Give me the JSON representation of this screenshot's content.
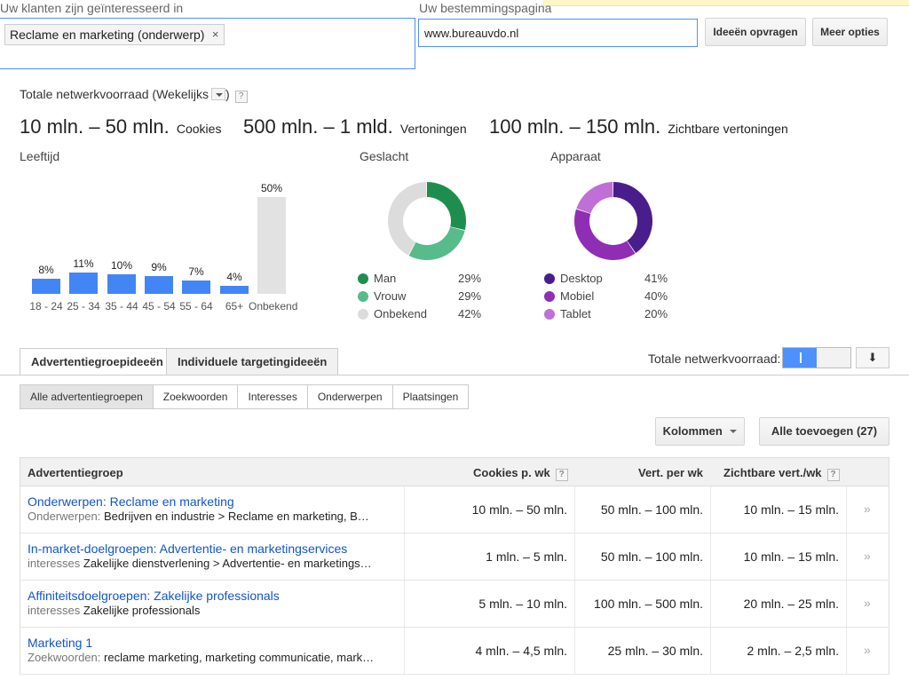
{
  "targeting": {
    "audience_label": "Uw klanten zijn geïnteresseerd in",
    "audience_chip": "Reclame en marketing (onderwerp)",
    "chip_remove": "×",
    "landing_label": "Uw bestemmingspagina",
    "landing_value": "www.bureauvdo.nl",
    "get_ideas_label": "Ideeën opvragen",
    "more_options_label": "Meer opties"
  },
  "summary": {
    "title": "Totale netwerkvoorraad (Wekelijks",
    "title_close": ")",
    "help": "?",
    "stats": [
      {
        "value": "10 mln. – 50 mln.",
        "unit": "Cookies"
      },
      {
        "value": "500 mln. – 1 mld.",
        "unit": "Vertoningen"
      },
      {
        "value": "100 mln. – 150 mln.",
        "unit": "Zichtbare vertoningen"
      }
    ]
  },
  "chart_data": [
    {
      "type": "bar",
      "title": "Leeftijd",
      "categories": [
        "18 - 24",
        "25 - 34",
        "35 - 44",
        "45 - 54",
        "55 - 64",
        "65+",
        "Onbekend"
      ],
      "values": [
        8,
        11,
        10,
        9,
        7,
        4,
        50
      ],
      "labels": [
        "8%",
        "11%",
        "10%",
        "9%",
        "7%",
        "4%",
        "50%"
      ],
      "colors": [
        "#4285f4",
        "#4285f4",
        "#4285f4",
        "#4285f4",
        "#4285f4",
        "#4285f4",
        "#e2e2e2"
      ]
    },
    {
      "type": "pie",
      "title": "Geslacht",
      "categories": [
        "Man",
        "Vrouw",
        "Onbekend"
      ],
      "values": [
        29,
        29,
        42
      ],
      "labels": [
        "29%",
        "29%",
        "42%"
      ],
      "colors": [
        "#1e8e4e",
        "#57bb8a",
        "#dcdcdc"
      ]
    },
    {
      "type": "pie",
      "title": "Apparaat",
      "categories": [
        "Desktop",
        "Mobiel",
        "Tablet"
      ],
      "values": [
        41,
        40,
        20
      ],
      "labels": [
        "41%",
        "40%",
        "20%"
      ],
      "colors": [
        "#4a1d8c",
        "#8f2db5",
        "#c06fd6"
      ]
    }
  ],
  "tabs": {
    "ad_groups": "Advertentiegroepideeën",
    "individual": "Individuele targetingideeën",
    "toggle_label": "Totale netwerkvoorraad:",
    "download_icon": "⬇"
  },
  "subtabs": [
    "Alle advertentiegroepen",
    "Zoekwoorden",
    "Interesses",
    "Onderwerpen",
    "Plaatsingen"
  ],
  "actions": {
    "columns_label": "Kolommen",
    "add_all_label": "Alle toevoegen (27)"
  },
  "table": {
    "headers": [
      "Advertentiegroep",
      "Cookies p. wk",
      "Vert. per wk",
      "Zichtbare vert./wk"
    ],
    "chevron": "»",
    "rows": [
      {
        "title": "Onderwerpen: Reclame en marketing",
        "type": "Onderwerpen:",
        "detail": "Bedrijven en industrie > Reclame en marketing, B…",
        "cookies": "10 mln. – 50 mln.",
        "impressions": "50 mln. – 100 mln.",
        "viewable": "10 mln. – 15 mln."
      },
      {
        "title": "In-market-doelgroepen: Advertentie- en marketingservices",
        "type": "interesses",
        "detail": "Zakelijke dienstverlening > Advertentie- en marketings…",
        "cookies": "1 mln. – 5 mln.",
        "impressions": "50 mln. – 100 mln.",
        "viewable": "10 mln. – 15 mln."
      },
      {
        "title": "Affiniteitsdoelgroepen: Zakelijke professionals",
        "type": "interesses",
        "detail": "Zakelijke professionals",
        "cookies": "5 mln. – 10 mln.",
        "impressions": "100 mln. – 500 mln.",
        "viewable": "20 mln. – 25 mln."
      },
      {
        "title": "Marketing 1",
        "type": "Zoekwoorden:",
        "detail": "reclame marketing, marketing communicatie, mark…",
        "cookies": "4 mln. – 4,5 mln.",
        "impressions": "25 mln. – 30 mln.",
        "viewable": "2 mln. – 2,5 mln."
      }
    ]
  }
}
